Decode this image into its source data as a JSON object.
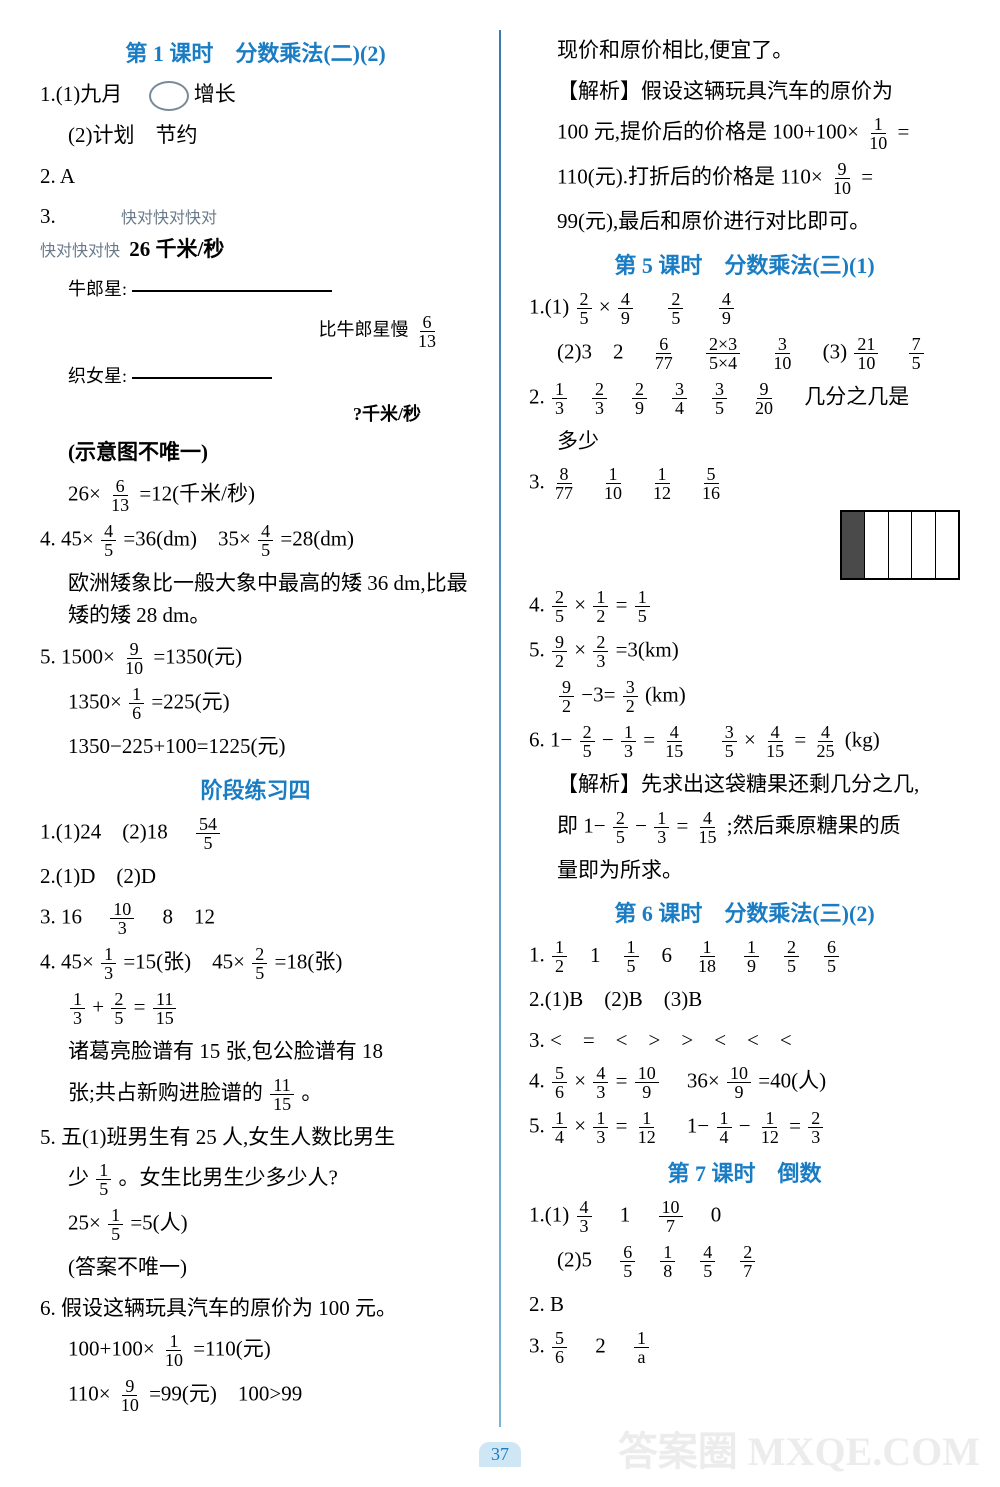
{
  "page_number": "37",
  "watermark": "答案圈 MXQE.COM",
  "left": {
    "title": "第 1 课时　分数乘法(二)(2)",
    "q1_1": "1.(1)九月　",
    "q1_1b": "增长",
    "q1_2": "(2)计划　节约",
    "q2": "2. A",
    "q3_label": "3.",
    "diag_note": "快对快对快对\n快对快对快",
    "diag_top": "26 千米/秒",
    "diag_star1": "牛郎星:",
    "diag_cmp": "比牛郎星慢",
    "diag_cmp_frac_n": "6",
    "diag_cmp_frac_d": "13",
    "diag_star2": "织女星:",
    "diag_q": "?千米/秒",
    "diag_hint": "(示意图不唯一)",
    "q3_eq": "26×",
    "q3_eq_fn": "6",
    "q3_eq_fd": "13",
    "q3_eq_r": "=12(千米/秒)",
    "q4a": "4. 45×",
    "q4a_fn": "4",
    "q4a_fd": "5",
    "q4a_r": "=36(dm)　35×",
    "q4b_fn": "4",
    "q4b_fd": "5",
    "q4b_r": "=28(dm)",
    "q4_text": "欧洲矮象比一般大象中最高的矮 36 dm,比最矮的矮 28 dm。",
    "q5a": "5. 1500×",
    "q5a_fn": "9",
    "q5a_fd": "10",
    "q5a_r": "=1350(元)",
    "q5b": "1350×",
    "q5b_fn": "1",
    "q5b_fd": "6",
    "q5b_r": "=225(元)",
    "q5c": "1350−225+100=1225(元)",
    "section2": "阶段练习四",
    "s2_q1": "1.(1)24　(2)18　",
    "s2_q1_fn": "54",
    "s2_q1_fd": "5",
    "s2_q2": "2.(1)D　(2)D",
    "s2_q3": "3. 16　",
    "s2_q3_fn": "10",
    "s2_q3_fd": "3",
    "s2_q3b": "　8　12",
    "s2_q4a": "4. 45×",
    "s2_q4a_fn": "1",
    "s2_q4a_fd": "3",
    "s2_q4a_r": "=15(张)　45×",
    "s2_q4b_fn": "2",
    "s2_q4b_fd": "5",
    "s2_q4b_r": "=18(张)",
    "s2_q4c_fn1": "1",
    "s2_q4c_fd1": "3",
    "s2_q4c_plus": "+",
    "s2_q4c_fn2": "2",
    "s2_q4c_fd2": "5",
    "s2_q4c_eq": "=",
    "s2_q4c_fn3": "11",
    "s2_q4c_fd3": "15",
    "s2_q4_text1": "诸葛亮脸谱有 15 张,包公脸谱有 18",
    "s2_q4_text2": "张;共占新购进脸谱的",
    "s2_q4_text2_fn": "11",
    "s2_q4_text2_fd": "15",
    "s2_q4_text2_end": "。",
    "s2_q5a": "5. 五(1)班男生有 25 人,女生人数比男生",
    "s2_q5b": "少",
    "s2_q5b_fn": "1",
    "s2_q5b_fd": "5",
    "s2_q5b_end": "。女生比男生少多少人?",
    "s2_q5c": "25×",
    "s2_q5c_fn": "1",
    "s2_q5c_fd": "5",
    "s2_q5c_r": "=5(人)",
    "s2_q5d": "(答案不唯一)",
    "s2_q6a": "6. 假设这辆玩具汽车的原价为 100 元。",
    "s2_q6b": "100+100×",
    "s2_q6b_fn": "1",
    "s2_q6b_fd": "10",
    "s2_q6b_r": "=110(元)",
    "s2_q6c": "110×",
    "s2_q6c_fn": "9",
    "s2_q6c_fd": "10",
    "s2_q6c_r": "=99(元)　100>99"
  },
  "right": {
    "r1": "现价和原价相比,便宜了。",
    "r2": "【解析】假设这辆玩具汽车的原价为",
    "r3": "100 元,提价后的价格是 100+100×",
    "r3_fn": "1",
    "r3_fd": "10",
    "r3_eq": "=",
    "r4": "110(元).打折后的价格是 110×",
    "r4_fn": "9",
    "r4_fd": "10",
    "r4_eq": "=",
    "r5": "99(元),最后和原价进行对比即可。",
    "title5": "第 5 课时　分数乘法(三)(1)",
    "t5_q1a": "1.(1)",
    "t5_q1a_f1n": "2",
    "t5_q1a_f1d": "5",
    "t5_q1a_x": "×",
    "t5_q1a_f2n": "4",
    "t5_q1a_f2d": "9",
    "t5_q1a_sp": "　",
    "t5_q1a_f3n": "2",
    "t5_q1a_f3d": "5",
    "t5_q1a_f4n": "4",
    "t5_q1a_f4d": "9",
    "t5_q1b": "(2)3　2　",
    "t5_q1b_f1n": "6",
    "t5_q1b_f1d": "77",
    "t5_q1b_f2n": "2×3",
    "t5_q1b_f2d": "5×4",
    "t5_q1b_f3n": "3",
    "t5_q1b_f3d": "10",
    "t5_q1b_3": "　(3)",
    "t5_q1b_f4n": "21",
    "t5_q1b_f4d": "10",
    "t5_q1b_f5n": "7",
    "t5_q1b_f5d": "5",
    "t5_q2": "2.",
    "t5_q2_f": [
      [
        "1",
        "3"
      ],
      [
        "2",
        "3"
      ],
      [
        "2",
        "9"
      ],
      [
        "3",
        "4"
      ],
      [
        "3",
        "5"
      ],
      [
        "9",
        "20"
      ]
    ],
    "t5_q2_txt": "　几分之几是",
    "t5_q2_txt2": "多少",
    "t5_q3": "3.",
    "t5_q3_f": [
      [
        "8",
        "77"
      ],
      [
        "1",
        "10"
      ],
      [
        "1",
        "12"
      ],
      [
        "5",
        "16"
      ]
    ],
    "t5_q4": "4.",
    "t5_q4_f1n": "2",
    "t5_q4_f1d": "5",
    "t5_q4_x": "×",
    "t5_q4_f2n": "1",
    "t5_q4_f2d": "2",
    "t5_q4_eq": "=",
    "t5_q4_f3n": "1",
    "t5_q4_f3d": "5",
    "t5_q5": "5.",
    "t5_q5_f1n": "9",
    "t5_q5_f1d": "2",
    "t5_q5_x": "×",
    "t5_q5_f2n": "2",
    "t5_q5_f2d": "3",
    "t5_q5_r": "=3(km)",
    "t5_q5b_f1n": "9",
    "t5_q5b_f1d": "2",
    "t5_q5b_m": "−3=",
    "t5_q5b_f2n": "3",
    "t5_q5b_f2d": "2",
    "t5_q5b_r": "(km)",
    "t5_q6": "6. 1−",
    "t5_q6_f1n": "2",
    "t5_q6_f1d": "5",
    "t5_q6_m": "−",
    "t5_q6_f2n": "1",
    "t5_q6_f2d": "3",
    "t5_q6_eq": "=",
    "t5_q6_f3n": "4",
    "t5_q6_f3d": "15",
    "t5_q6_sp": "　",
    "t5_q6_f4n": "3",
    "t5_q6_f4d": "5",
    "t5_q6_x": "×",
    "t5_q6_f5n": "4",
    "t5_q6_f5d": "15",
    "t5_q6_eq2": "=",
    "t5_q6_f6n": "4",
    "t5_q6_f6d": "25",
    "t5_q6_r": "(kg)",
    "t5_q6_ex1": "【解析】先求出这袋糖果还剩几分之几,",
    "t5_q6_ex2": "即 1−",
    "t5_q6_ex2_f1n": "2",
    "t5_q6_ex2_f1d": "5",
    "t5_q6_ex2_m": "−",
    "t5_q6_ex2_f2n": "1",
    "t5_q6_ex2_f2d": "3",
    "t5_q6_ex2_eq": "=",
    "t5_q6_ex2_f3n": "4",
    "t5_q6_ex2_f3d": "15",
    "t5_q6_ex2_r": ";然后乘原糖果的质",
    "t5_q6_ex3": "量即为所求。",
    "title6": "第 6 课时　分数乘法(三)(2)",
    "t6_q1": "1.",
    "t6_q1_items": [
      [
        "1",
        "2"
      ],
      "1",
      [
        "1",
        "5"
      ],
      "6",
      [
        "1",
        "18"
      ],
      [
        "1",
        "9"
      ],
      [
        "2",
        "5"
      ],
      [
        "6",
        "5"
      ]
    ],
    "t6_q2": "2.(1)B　(2)B　(3)B",
    "t6_q3": "3. <　=　<　>　>　<　<　<",
    "t6_q4": "4.",
    "t6_q4_f1n": "5",
    "t6_q4_f1d": "6",
    "t6_q4_x": "×",
    "t6_q4_f2n": "4",
    "t6_q4_f2d": "3",
    "t6_q4_eq": "=",
    "t6_q4_f3n": "10",
    "t6_q4_f3d": "9",
    "t6_q4_sp": "　36×",
    "t6_q4_f4n": "10",
    "t6_q4_f4d": "9",
    "t6_q4_r": "=40(人)",
    "t6_q5": "5.",
    "t6_q5_f1n": "1",
    "t6_q5_f1d": "4",
    "t6_q5_x": "×",
    "t6_q5_f2n": "1",
    "t6_q5_f2d": "3",
    "t6_q5_eq": "=",
    "t6_q5_f3n": "1",
    "t6_q5_f3d": "12",
    "t6_q5_sp": "　1−",
    "t6_q5_f4n": "1",
    "t6_q5_f4d": "4",
    "t6_q5_m": "−",
    "t6_q5_f5n": "1",
    "t6_q5_f5d": "12",
    "t6_q5_eq2": "=",
    "t6_q5_f6n": "2",
    "t6_q5_f6d": "3",
    "title7": "第 7 课时　倒数",
    "t7_q1a": "1.(1)",
    "t7_q1a_f1n": "4",
    "t7_q1a_f1d": "3",
    "t7_q1a_1": "　1　",
    "t7_q1a_f2n": "10",
    "t7_q1a_f2d": "7",
    "t7_q1a_0": "　0",
    "t7_q1b": "(2)5　",
    "t7_q1b_f": [
      [
        "6",
        "5"
      ],
      [
        "1",
        "8"
      ],
      [
        "4",
        "5"
      ],
      [
        "2",
        "7"
      ]
    ],
    "t7_q2": "2. B",
    "t7_q3": "3.",
    "t7_q3_f1n": "5",
    "t7_q3_f1d": "6",
    "t7_q3_2": "　2　",
    "t7_q3_f2n": "1",
    "t7_q3_f2d": "a"
  }
}
